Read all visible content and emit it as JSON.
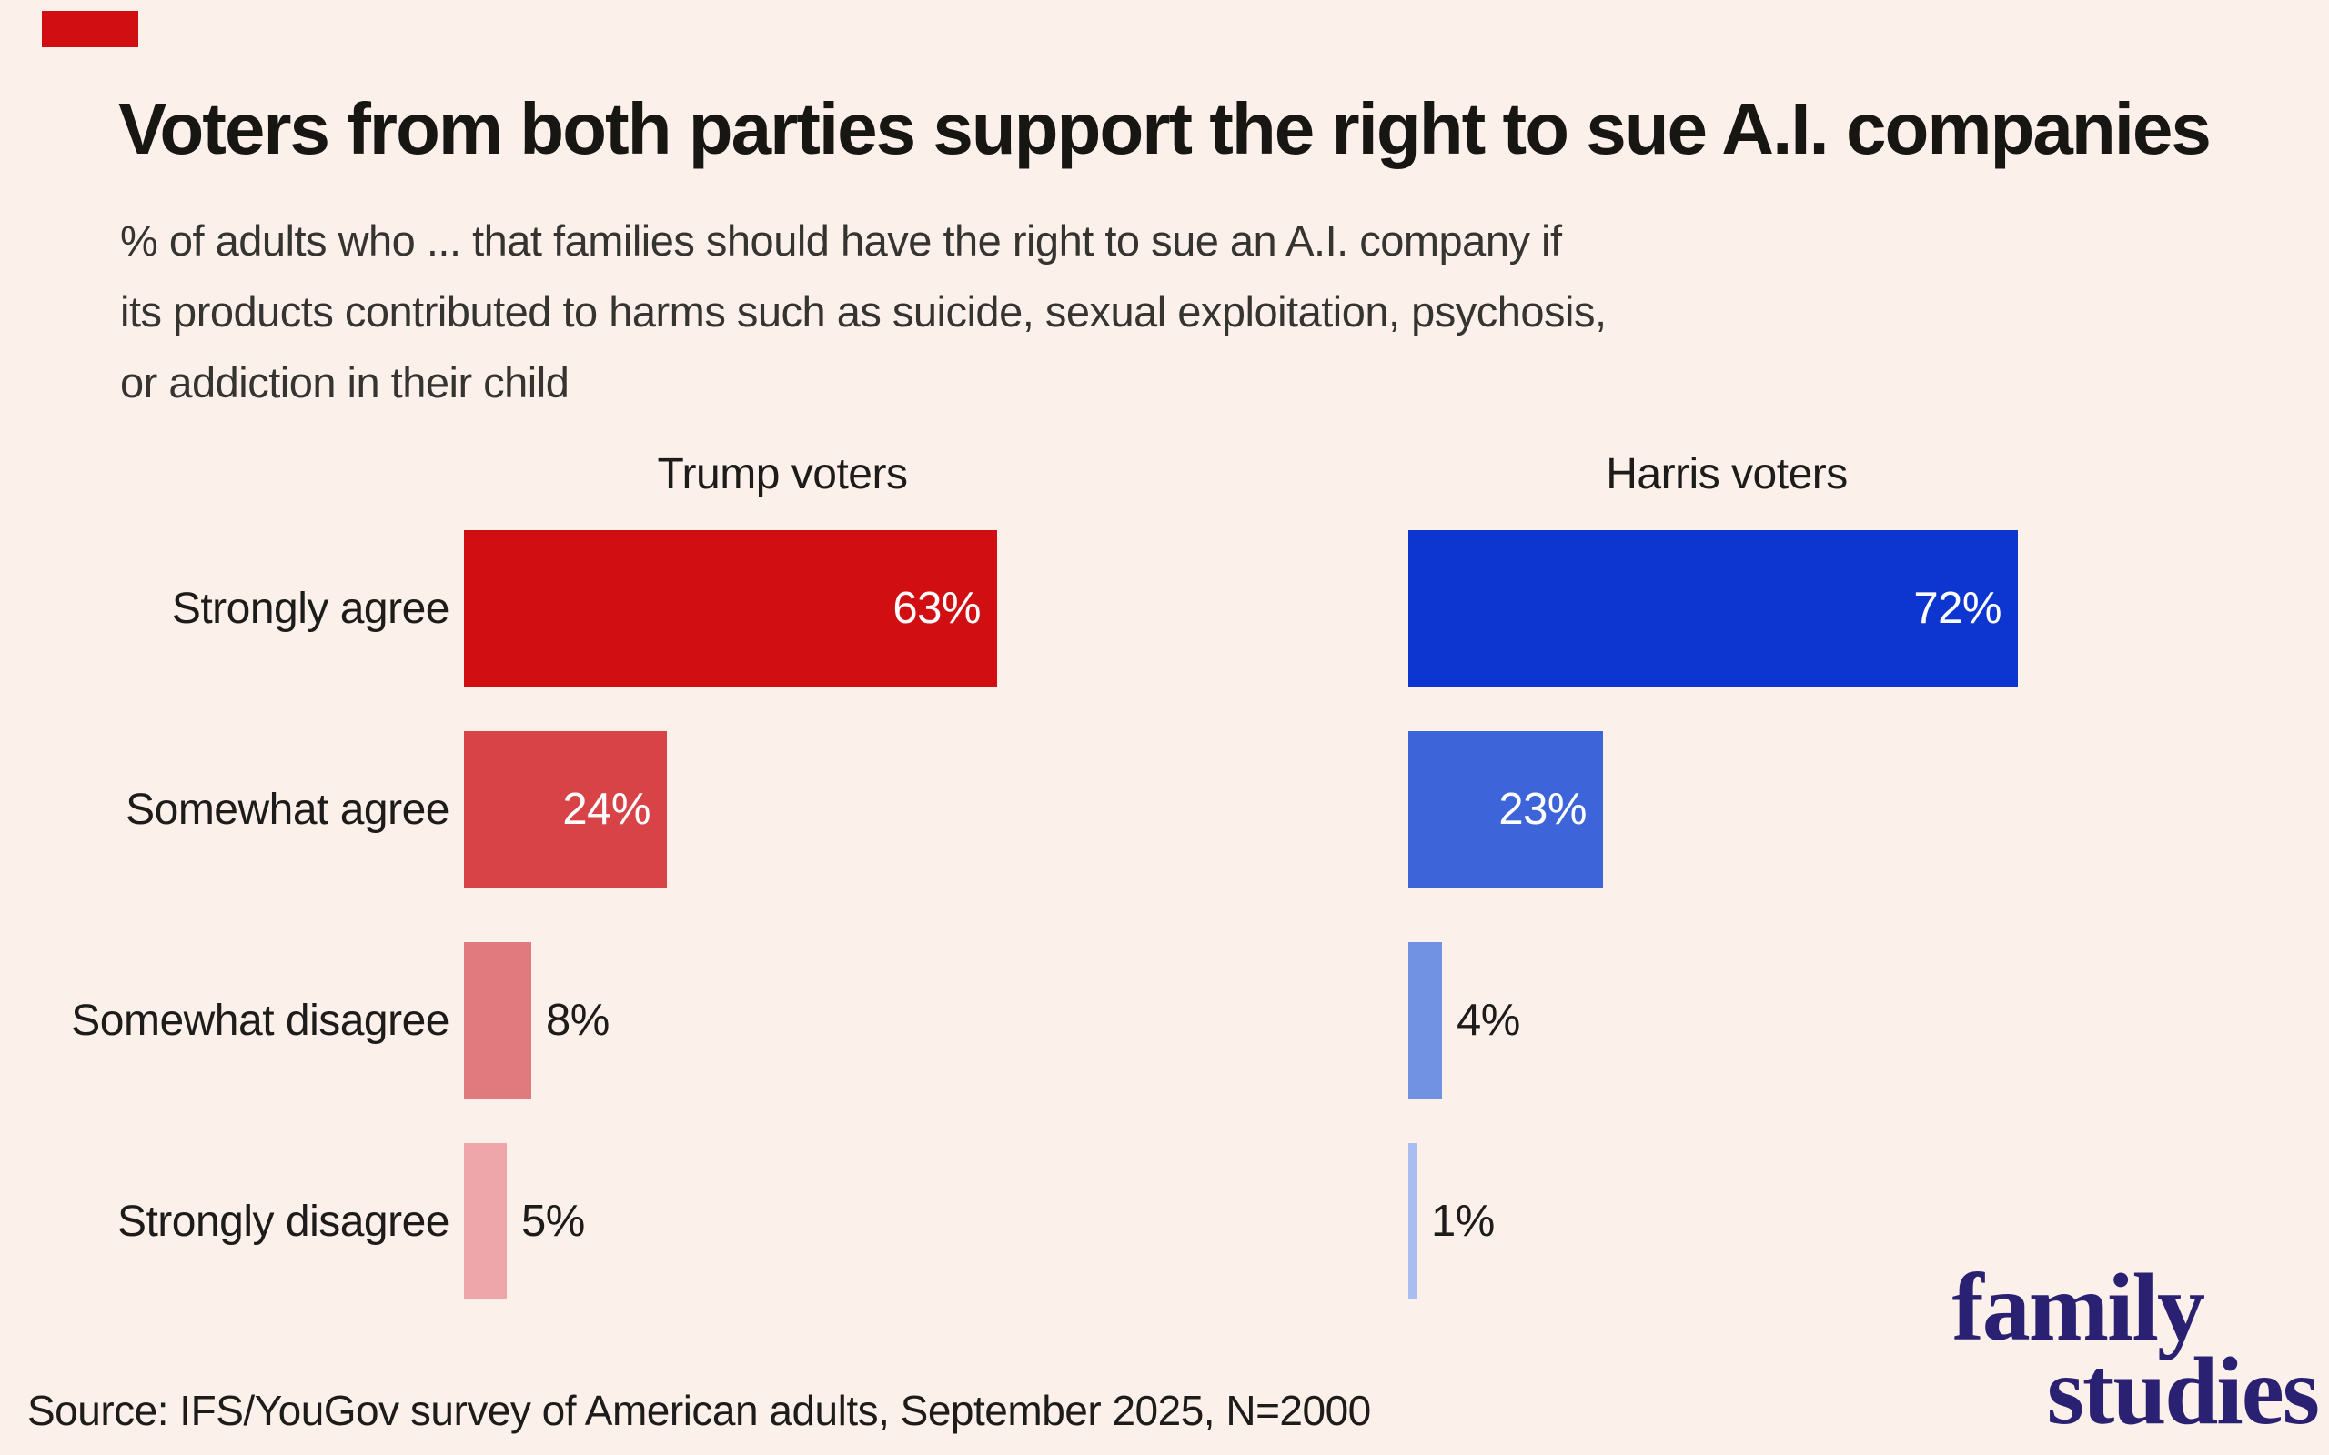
{
  "title": "Voters from both parties support the right to sue A.I. companies",
  "subtitle_lines": [
    "% of adults who ... that families should have the right to sue an A.I. company if",
    "its products contributed to harms such as suicide, sexual exploitation, psychosis,",
    "or addiction in their child"
  ],
  "source": "Source: IFS/YouGov survey of American adults, September 2025, N=2000",
  "logo": {
    "line1": "family",
    "line2": "studies",
    "color": "#2b2173"
  },
  "colors": {
    "background": "#fcf1ea",
    "title_text": "#181613",
    "subtitle_text": "#363431",
    "label_text": "#1d1c1a",
    "value_label_inside": "#ffffff",
    "value_label_outside": "#1d1c1a",
    "corner_marker": "#d10f12"
  },
  "chart_data": {
    "type": "bar",
    "orientation": "horizontal",
    "title": "Voters from both parties support the right to sue A.I. companies",
    "subtitle": "% of adults who ... that families should have the right to sue an A.I. company if its products contributed to harms such as suicide, sexual exploitation, psychosis, or addiction in their child",
    "categories": [
      "Strongly agree",
      "Somewhat agree",
      "Somewhat disagree",
      "Strongly disagree"
    ],
    "series": [
      {
        "name": "Trump voters",
        "values": [
          63,
          24,
          8,
          5
        ],
        "bar_colors": [
          "#d10f12",
          "#d84348",
          "#e17a7e",
          "#efa6ab"
        ]
      },
      {
        "name": "Harris voters",
        "values": [
          72,
          23,
          4,
          1
        ],
        "bar_colors": [
          "#0d36d0",
          "#3d64d9",
          "#7191e3",
          "#aabdf0"
        ]
      }
    ],
    "value_suffix": "%",
    "xlim": [
      0,
      75
    ],
    "grid": false,
    "legend_position": "column headers above each panel",
    "value_label_inside_threshold": 15,
    "source": "Source: IFS/YouGov survey of American adults, September 2025, N=2000"
  }
}
